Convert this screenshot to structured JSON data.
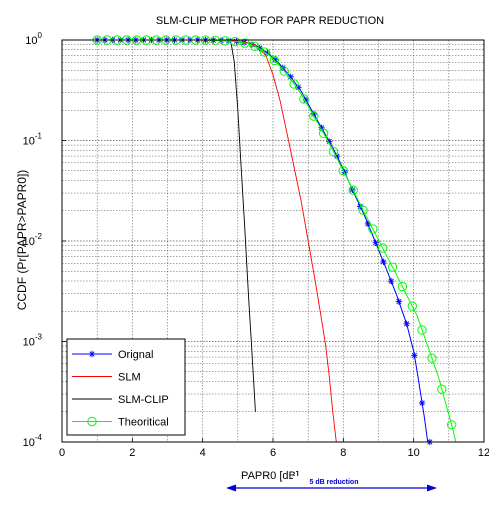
{
  "chart_data": {
    "type": "line",
    "title": "SLM-CLIP METHOD FOR PAPR REDUCTION",
    "xlabel": "PAPR0 [dB]",
    "ylabel": "CCDF (Pr[PAPR>PAPR0])",
    "xlim": [
      0,
      12
    ],
    "ylim": [
      0.0001,
      1
    ],
    "yscale": "log",
    "grid": true,
    "legend_position": "bottom-left",
    "x_ticks": [
      "0",
      "2",
      "4",
      "6",
      "8",
      "10",
      "12"
    ],
    "y_ticks": [
      {
        "base": "10",
        "exp": "0"
      },
      {
        "base": "10",
        "exp": "-1"
      },
      {
        "base": "10",
        "exp": "-2"
      },
      {
        "base": "10",
        "exp": "-3"
      },
      {
        "base": "10",
        "exp": "-4"
      }
    ],
    "series": [
      {
        "name": "Orignal",
        "color": "#0000ff",
        "marker": "asterisk",
        "x": [
          1.0,
          2.0,
          3.0,
          4.0,
          4.5,
          5.0,
          5.3,
          5.6,
          5.9,
          6.2,
          6.5,
          6.8,
          7.1,
          7.4,
          7.7,
          8.0,
          8.3,
          8.6,
          8.9,
          9.2,
          9.5,
          9.8,
          10.0,
          10.1,
          10.2,
          10.3,
          10.4,
          10.5
        ],
        "y": [
          1.0,
          1.0,
          1.0,
          1.0,
          0.99,
          0.97,
          0.93,
          0.84,
          0.72,
          0.57,
          0.43,
          0.31,
          0.2,
          0.13,
          0.085,
          0.052,
          0.03,
          0.018,
          0.01,
          0.0055,
          0.003,
          0.0015,
          0.0008,
          0.0005,
          0.0003,
          0.00018,
          0.0001,
          0.0001
        ]
      },
      {
        "name": "SLM",
        "color": "#ff0000",
        "marker": "none",
        "x": [
          1.0,
          4.0,
          5.0,
          5.5,
          5.8,
          6.0,
          6.2,
          6.5,
          6.8,
          7.0,
          7.2,
          7.4,
          7.5,
          7.6,
          7.7,
          7.8
        ],
        "y": [
          1.0,
          1.0,
          0.98,
          0.9,
          0.7,
          0.45,
          0.25,
          0.08,
          0.025,
          0.01,
          0.004,
          0.0015,
          0.0009,
          0.00045,
          0.0002,
          0.0001
        ]
      },
      {
        "name": "SLM-CLIP",
        "color": "#000000",
        "marker": "none",
        "x": [
          1.0,
          4.5,
          4.8,
          4.9,
          5.0,
          5.1,
          5.2,
          5.3,
          5.4,
          5.5
        ],
        "y": [
          1.0,
          1.0,
          0.97,
          0.6,
          0.2,
          0.05,
          0.013,
          0.003,
          0.0008,
          0.0002
        ]
      },
      {
        "name": "Theoritical",
        "color": "#00ff00",
        "marker": "circle",
        "x": [
          1.0,
          2.0,
          3.0,
          4.0,
          4.5,
          5.0,
          5.3,
          5.6,
          5.9,
          6.2,
          6.5,
          6.8,
          7.1,
          7.4,
          7.7,
          8.0,
          8.3,
          8.6,
          8.9,
          9.2,
          9.5,
          9.8,
          10.1,
          10.4,
          10.7,
          10.9,
          11.1,
          11.2
        ],
        "y": [
          1.0,
          1.0,
          1.0,
          1.0,
          0.99,
          0.96,
          0.92,
          0.83,
          0.7,
          0.55,
          0.41,
          0.29,
          0.19,
          0.125,
          0.08,
          0.05,
          0.031,
          0.019,
          0.012,
          0.0075,
          0.0047,
          0.0029,
          0.0018,
          0.0009,
          0.00045,
          0.00025,
          0.00014,
          0.0001
        ]
      }
    ]
  },
  "annotation": {
    "text": "5 dB reduction",
    "color": "#0000cc"
  }
}
